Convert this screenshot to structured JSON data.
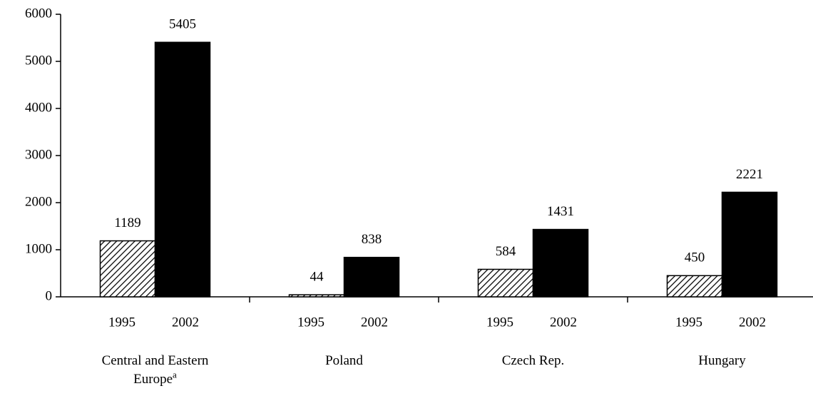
{
  "chart_data": {
    "type": "bar",
    "categories": [
      "Central and Eastern Europe",
      "Poland",
      "Czech Rep.",
      "Hungary"
    ],
    "category_superscripts": [
      "a",
      null,
      null,
      null
    ],
    "series": [
      {
        "name": "1995",
        "color": "#000000",
        "pattern": "hatch",
        "values": [
          1189,
          44,
          584,
          450
        ]
      },
      {
        "name": "2002",
        "color": "#000000",
        "values": [
          5405,
          838,
          1431,
          2221
        ]
      }
    ],
    "ylim": [
      0,
      6000
    ],
    "yticks": [
      0,
      1000,
      2000,
      3000,
      4000,
      5000,
      6000
    ],
    "grid": false
  }
}
